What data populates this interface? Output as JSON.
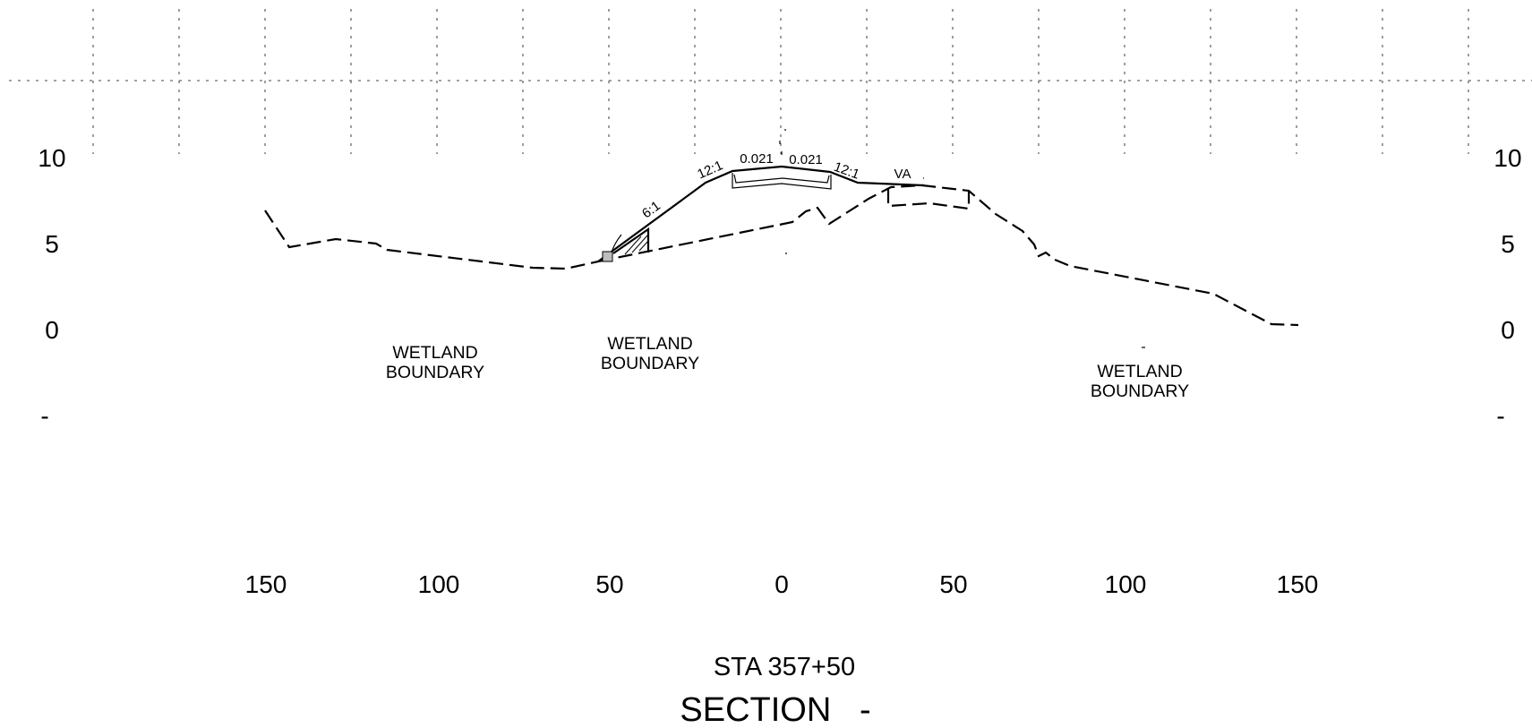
{
  "elevation_labels": {
    "left": [
      "10",
      "5",
      "0",
      "-"
    ],
    "right": [
      "10",
      "5",
      "0",
      "-"
    ]
  },
  "offset_labels": [
    "150",
    "100",
    "50",
    "0",
    "50",
    "100",
    "150"
  ],
  "notes": {
    "wetland_left": [
      "WETLAND",
      "BOUNDARY"
    ],
    "wetland_mid": [
      "WETLAND",
      "BOUNDARY"
    ],
    "wetland_right": [
      "WETLAND",
      "BOUNDARY"
    ]
  },
  "slopes": {
    "fill_slope": "6:1",
    "left_shoulder": "12:1",
    "left_lane": "0.021",
    "right_lane": "0.021",
    "right_shoulder": "12:1",
    "va": "VA"
  },
  "station": "STA 357+50",
  "section_title": "SECTION   -"
}
